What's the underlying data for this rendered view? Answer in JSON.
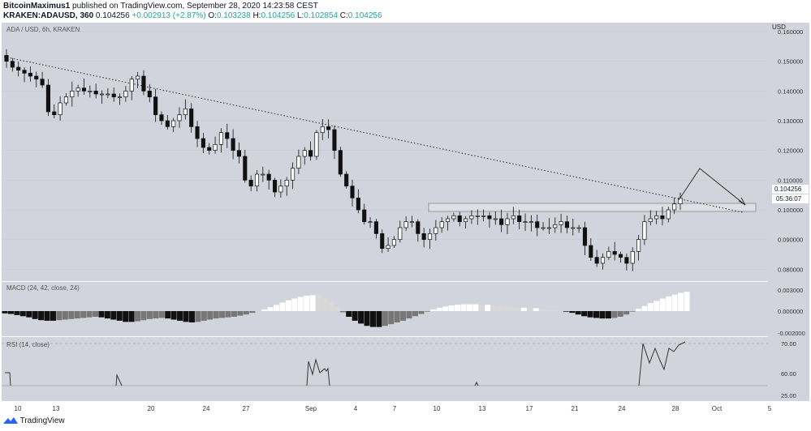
{
  "header": {
    "author": "BitcoinMaximus1",
    "published_text": "published on TradingView.com, September 28, 2020 14:23:58 CEST",
    "symbol": "KRAKEN:ADAUSD, 360",
    "last": "0.104256",
    "change": "+0.002913 (+2.87%)",
    "o_label": "O:",
    "o": "0.103238",
    "h_label": "H:",
    "h": "0.104256",
    "l_label": "L:",
    "l": "0.102854",
    "c_label": "C:",
    "c": "0.104256"
  },
  "chart_data": [
    {
      "type": "candlestick",
      "title": "ADA / USD, 6h, KRAKEN",
      "ylabel": "USD",
      "ylim": [
        0.076,
        0.163
      ],
      "y_ticks": [
        "0.160000",
        "0.150000",
        "0.140000",
        "0.130000",
        "0.120000",
        "0.110000",
        "0.100000",
        "0.090000",
        "0.080000"
      ],
      "x_ticks": [
        "10",
        "13",
        "20",
        "24",
        "27",
        "Sep",
        "4",
        "7",
        "10",
        "13",
        "17",
        "21",
        "24",
        "28",
        "Oct",
        "5"
      ],
      "price_label": "0.104256",
      "countdown": "05:36:07",
      "close_path": [
        0.15,
        0.148,
        0.147,
        0.146,
        0.145,
        0.144,
        0.142,
        0.133,
        0.132,
        0.136,
        0.138,
        0.14,
        0.141,
        0.14,
        0.14,
        0.139,
        0.139,
        0.139,
        0.138,
        0.138,
        0.14,
        0.144,
        0.145,
        0.14,
        0.138,
        0.132,
        0.13,
        0.128,
        0.13,
        0.132,
        0.134,
        0.128,
        0.124,
        0.121,
        0.12,
        0.122,
        0.126,
        0.124,
        0.12,
        0.118,
        0.11,
        0.108,
        0.112,
        0.112,
        0.11,
        0.106,
        0.108,
        0.11,
        0.114,
        0.118,
        0.12,
        0.118,
        0.126,
        0.128,
        0.127,
        0.12,
        0.112,
        0.108,
        0.104,
        0.1,
        0.096,
        0.096,
        0.092,
        0.087,
        0.088,
        0.09,
        0.094,
        0.096,
        0.096,
        0.092,
        0.09,
        0.092,
        0.094,
        0.096,
        0.097,
        0.098,
        0.096,
        0.097,
        0.098,
        0.098,
        0.098,
        0.097,
        0.097,
        0.095,
        0.097,
        0.098,
        0.096,
        0.096,
        0.096,
        0.094,
        0.094,
        0.094,
        0.095,
        0.096,
        0.094,
        0.094,
        0.094,
        0.088,
        0.084,
        0.082,
        0.084,
        0.086,
        0.085,
        0.084,
        0.082,
        0.086,
        0.09,
        0.096,
        0.097,
        0.098,
        0.097,
        0.1,
        0.102,
        0.104
      ]
    },
    {
      "type": "histogram",
      "title": "MACD (24, 42, close, 24)",
      "y_ticks": [
        "0.003000",
        "0.000000",
        "-0.002000"
      ],
      "values": [
        -0.4,
        -0.5,
        -0.7,
        -0.9,
        -1.1,
        -1.4,
        -1.6,
        -1.7,
        -1.7,
        -1.6,
        -1.5,
        -1.4,
        -1.3,
        -1.2,
        -1.1,
        -1.0,
        -1.1,
        -1.3,
        -1.5,
        -1.7,
        -1.9,
        -1.9,
        -1.8,
        -1.6,
        -1.4,
        -1.3,
        -1.2,
        -1.3,
        -1.5,
        -1.7,
        -1.9,
        -2.0,
        -1.9,
        -1.7,
        -1.5,
        -1.3,
        -1.2,
        -1.1,
        -1.0,
        -0.8,
        -0.6,
        -0.3,
        0.0,
        0.3,
        0.7,
        1.1,
        1.5,
        1.9,
        2.2,
        2.5,
        2.7,
        2.8,
        2.7,
        2.2,
        1.6,
        0.8,
        -0.2,
        -1.0,
        -1.7,
        -2.2,
        -2.6,
        -2.8,
        -2.8,
        -2.6,
        -2.3,
        -2.0,
        -1.7,
        -1.3,
        -0.9,
        -0.5,
        -0.1,
        0.3,
        0.6,
        0.8,
        1.0,
        1.1,
        1.2,
        1.2,
        1.2,
        1.1,
        1.1,
        1.0,
        0.9,
        0.8,
        0.7,
        0.6,
        0.6,
        0.5,
        0.5,
        0.4,
        0.3,
        0.2,
        0.1,
        -0.1,
        -0.3,
        -0.6,
        -0.9,
        -1.1,
        -1.2,
        -1.3,
        -1.3,
        -1.2,
        -1.0,
        -0.6,
        -0.1,
        0.4,
        0.9,
        1.4,
        1.8,
        2.2,
        2.6,
        2.9,
        3.2,
        3.4
      ]
    },
    {
      "type": "line",
      "title": "RSI (14, close)",
      "y_ticks": [
        "70.00",
        "60.00",
        "25.00"
      ]
    }
  ]
}
